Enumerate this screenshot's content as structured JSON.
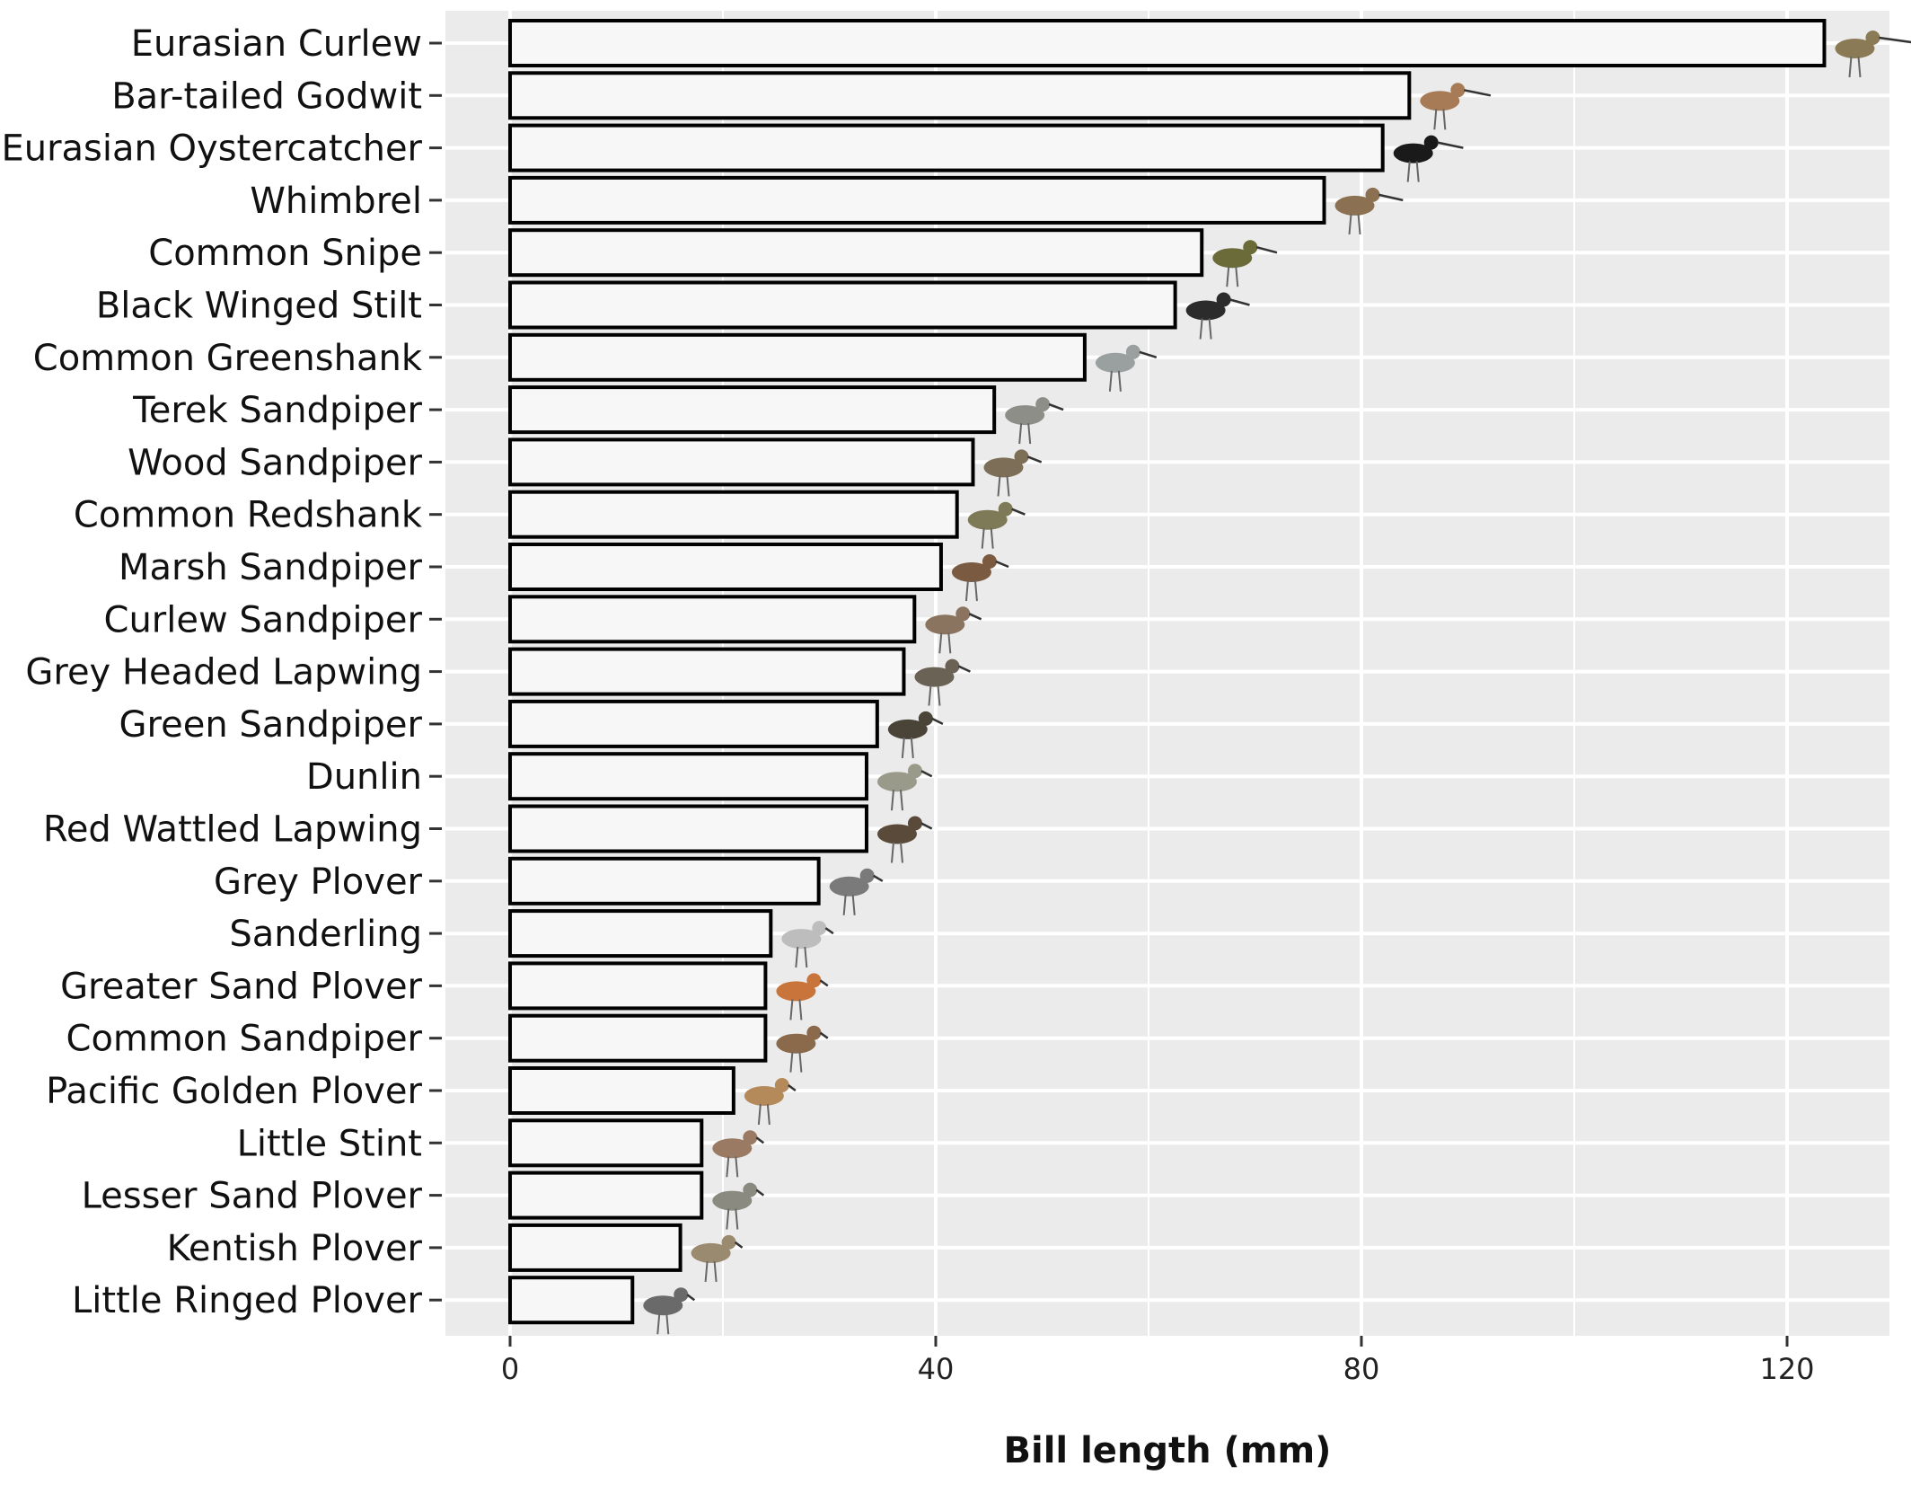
{
  "chart_data": {
    "type": "bar",
    "orientation": "horizontal",
    "xlabel": "Bill length (mm)",
    "ylabel": "",
    "title": "",
    "xlim": [
      -15,
      130
    ],
    "xticks": [
      0,
      40,
      80,
      120
    ],
    "grid": true,
    "panel_background": "#ebebeb",
    "bar_fill": "#f7f7f7",
    "bar_stroke": "#000000",
    "categories": [
      "Eurasian Curlew",
      "Bar-tailed Godwit",
      "Eurasian Oystercatcher",
      "Whimbrel",
      "Common Snipe",
      "Black Winged Stilt",
      "Common Greenshank",
      "Terek Sandpiper",
      "Wood Sandpiper",
      "Common Redshank",
      "Marsh Sandpiper",
      "Curlew Sandpiper",
      "Grey Headed Lapwing",
      "Green Sandpiper",
      "Dunlin",
      "Red Wattled Lapwing",
      "Grey Plover",
      "Sanderling",
      "Greater Sand Plover",
      "Common Sandpiper",
      "Pacific Golden Plover",
      "Little Stint",
      "Lesser Sand Plover",
      "Kentish Plover",
      "Little Ringed Plover"
    ],
    "values": [
      123.5,
      84.5,
      82,
      76.5,
      65,
      62.5,
      54,
      45.5,
      43.5,
      42,
      40.5,
      38,
      37,
      34.5,
      33.5,
      33.5,
      29,
      24.5,
      24,
      24,
      21,
      18,
      18,
      16,
      11.5
    ]
  }
}
